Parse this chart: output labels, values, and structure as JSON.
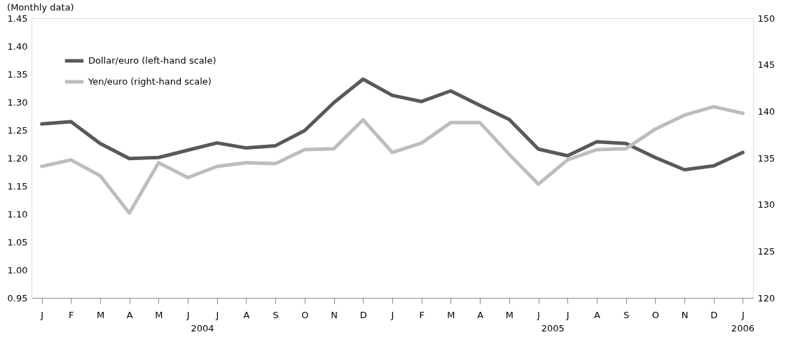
{
  "chart_data": {
    "type": "line",
    "subtitle": "(Monthly data)",
    "categories": [
      "J",
      "F",
      "M",
      "A",
      "M",
      "J",
      "J",
      "A",
      "S",
      "O",
      "N",
      "D",
      "J",
      "F",
      "M",
      "A",
      "M",
      "J",
      "J",
      "A",
      "S",
      "O",
      "N",
      "D",
      "J"
    ],
    "series": [
      {
        "name": "Dollar/euro (left-hand scale)",
        "color": "#595959",
        "axis": "y",
        "values": [
          1.261,
          1.265,
          1.226,
          1.199,
          1.201,
          1.214,
          1.227,
          1.218,
          1.222,
          1.249,
          1.299,
          1.341,
          1.312,
          1.301,
          1.32,
          1.294,
          1.269,
          1.216,
          1.204,
          1.229,
          1.226,
          1.201,
          1.179,
          1.186,
          1.21
        ]
      },
      {
        "name": "Yen/euro (right-hand scale)",
        "color": "#bdbdbd",
        "axis": "y2",
        "values": [
          134.1,
          134.8,
          133.1,
          129.1,
          134.5,
          132.9,
          134.1,
          134.5,
          134.4,
          135.9,
          136.0,
          139.1,
          135.6,
          136.6,
          138.8,
          138.8,
          135.4,
          132.2,
          134.8,
          135.9,
          136.0,
          138.1,
          139.6,
          140.5,
          139.8
        ]
      }
    ],
    "ylim": [
      0.95,
      1.45
    ],
    "yticks": [
      {
        "value": 0.95,
        "label": "0.95"
      },
      {
        "value": 1.0,
        "label": "1.00"
      },
      {
        "value": 1.05,
        "label": "1.05"
      },
      {
        "value": 1.1,
        "label": "1.10"
      },
      {
        "value": 1.15,
        "label": "1.15"
      },
      {
        "value": 1.2,
        "label": "1.20"
      },
      {
        "value": 1.25,
        "label": "1.25"
      },
      {
        "value": 1.3,
        "label": "1.30"
      },
      {
        "value": 1.35,
        "label": "1.35"
      },
      {
        "value": 1.4,
        "label": "1.40"
      },
      {
        "value": 1.45,
        "label": "1.45"
      }
    ],
    "y2lim": [
      120,
      150
    ],
    "y2ticks": [
      120,
      125,
      130,
      135,
      140,
      145,
      150
    ],
    "annotations": [
      "2004",
      "2005",
      "2006"
    ],
    "legend": "top left",
    "line_style": "solid"
  }
}
